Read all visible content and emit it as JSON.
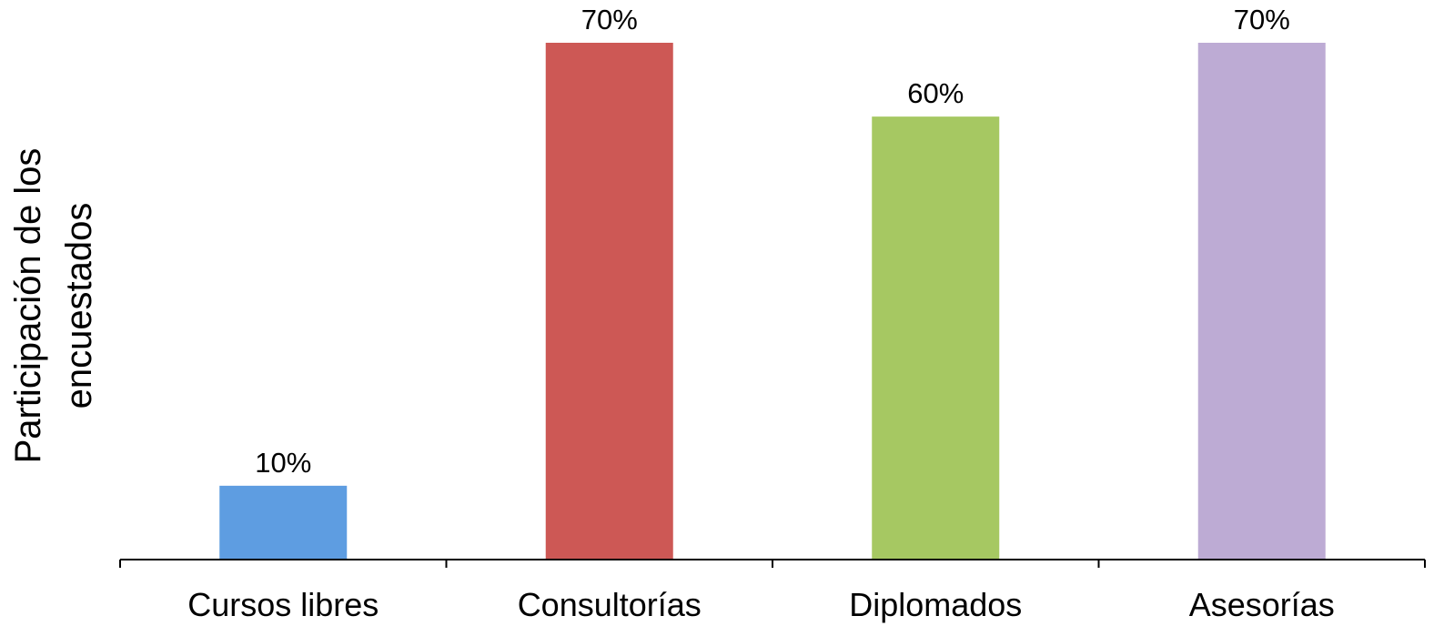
{
  "chart_data": {
    "type": "bar",
    "categories": [
      "Cursos libres",
      "Consultorías",
      "Diplomados",
      "Asesorías"
    ],
    "values": [
      10,
      70,
      60,
      70
    ],
    "data_labels": [
      "10%",
      "70%",
      "60%",
      "70%"
    ],
    "colors": [
      "#5e9de1",
      "#cd5855",
      "#a6c862",
      "#bdabd4"
    ],
    "ylabel_lines": [
      "Participación de los",
      "encuestados"
    ],
    "title": "",
    "xlabel": "",
    "ylim": [
      0,
      70
    ],
    "grid": false,
    "legend": "none"
  }
}
